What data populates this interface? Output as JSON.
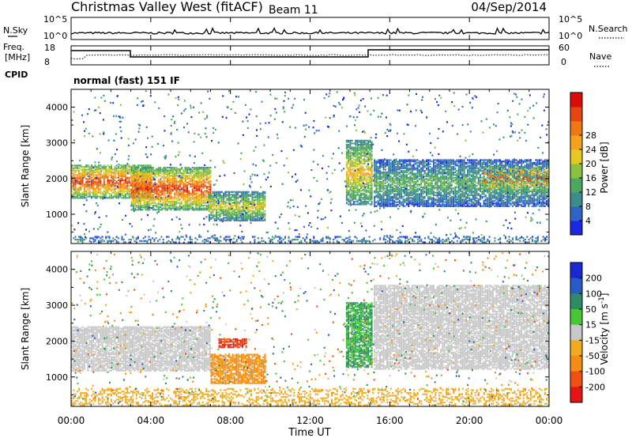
{
  "header": {
    "station": "Christmas Valley West (fitACF)",
    "beam": "Beam 11",
    "date": "04/Sep/2014"
  },
  "panels": {
    "nsky": {
      "label": "N.Sky",
      "right_label": "N.Search",
      "ticks_left": [
        "10^5",
        "10^0"
      ],
      "ticks_right": [
        "10^5",
        "10^0"
      ]
    },
    "freq": {
      "label_line1": "Freq.",
      "label_line2": "[MHz]",
      "right_label": "Nave",
      "ticks_left": [
        "18",
        "8"
      ],
      "ticks_right": [
        "60",
        "0"
      ]
    },
    "cpid": {
      "label": "CPID",
      "value": "normal (fast) 151 IF"
    }
  },
  "chart_data": [
    {
      "type": "heatmap",
      "name": "power",
      "xlabel": "Time UT",
      "ylabel": "Slant Range [km]",
      "xlim": [
        0,
        24
      ],
      "ylim": [
        180,
        4500
      ],
      "x_ticks": [
        "00:00",
        "04:00",
        "08:00",
        "12:00",
        "16:00",
        "20:00",
        "00:00"
      ],
      "y_ticks": [
        1000,
        2000,
        3000,
        4000
      ],
      "colorbar": {
        "label": "Power [dB]",
        "ticks": [
          4,
          8,
          12,
          16,
          20,
          24,
          28
        ],
        "colors": [
          "#1a28e0",
          "#2f63c6",
          "#3c8c8c",
          "#4aa860",
          "#8cc040",
          "#e6c81e",
          "#f5a01e",
          "#f07814",
          "#e8460f",
          "#dc0a0a"
        ]
      },
      "regions": [
        {
          "t": [
            0.0,
            4.0
          ],
          "r": [
            1480,
            2420
          ],
          "peak_db": 28
        },
        {
          "t": [
            3.0,
            7.0
          ],
          "r": [
            1150,
            2350
          ],
          "peak_db": 28
        },
        {
          "t": [
            6.9,
            9.7
          ],
          "r": [
            850,
            1650
          ],
          "peak_db": 18
        },
        {
          "t": [
            13.8,
            15.1
          ],
          "r": [
            1300,
            3100
          ],
          "peak_db": 20
        },
        {
          "t": [
            15.2,
            24.0
          ],
          "r": [
            1250,
            2550
          ],
          "peak_db": 12
        },
        {
          "t": [
            20.7,
            24.0
          ],
          "r": [
            1650,
            2400
          ],
          "peak_db": 28
        },
        {
          "t": [
            0.0,
            24.0
          ],
          "r": [
            200,
            420
          ],
          "peak_db": 8
        }
      ]
    },
    {
      "type": "heatmap",
      "name": "velocity",
      "xlabel": "Time UT",
      "ylabel": "Slant Range [km]",
      "xlim": [
        0,
        24
      ],
      "ylim": [
        180,
        4500
      ],
      "x_ticks": [
        "00:00",
        "04:00",
        "08:00",
        "12:00",
        "16:00",
        "20:00",
        "00:00"
      ],
      "y_ticks": [
        1000,
        2000,
        3000,
        4000
      ],
      "colorbar": {
        "label": "Velocity [m s^-1]",
        "ticks": [
          "200",
          "100",
          "50",
          "15",
          "-15",
          "-50",
          "-100",
          "-200"
        ],
        "colors": [
          "#1a28d2",
          "#285ac8",
          "#2d8c64",
          "#46c832",
          "#c8c8c8",
          "#f0aa1e",
          "#f58c14",
          "#f0500f",
          "#e61414"
        ]
      },
      "regions": [
        {
          "t": [
            0.0,
            7.0
          ],
          "r": [
            1200,
            2420
          ],
          "velocity": 0
        },
        {
          "t": [
            7.0,
            9.7
          ],
          "r": [
            850,
            1650
          ],
          "velocity": -60
        },
        {
          "t": [
            7.4,
            8.8
          ],
          "r": [
            1850,
            2100
          ],
          "velocity": -200
        },
        {
          "t": [
            13.8,
            15.1
          ],
          "r": [
            1300,
            3100
          ],
          "velocity": 50
        },
        {
          "t": [
            15.2,
            24.0
          ],
          "r": [
            1250,
            3600
          ],
          "velocity": 0
        },
        {
          "t": [
            0.0,
            24.0
          ],
          "r": [
            200,
            700
          ],
          "velocity": -30
        }
      ]
    }
  ]
}
